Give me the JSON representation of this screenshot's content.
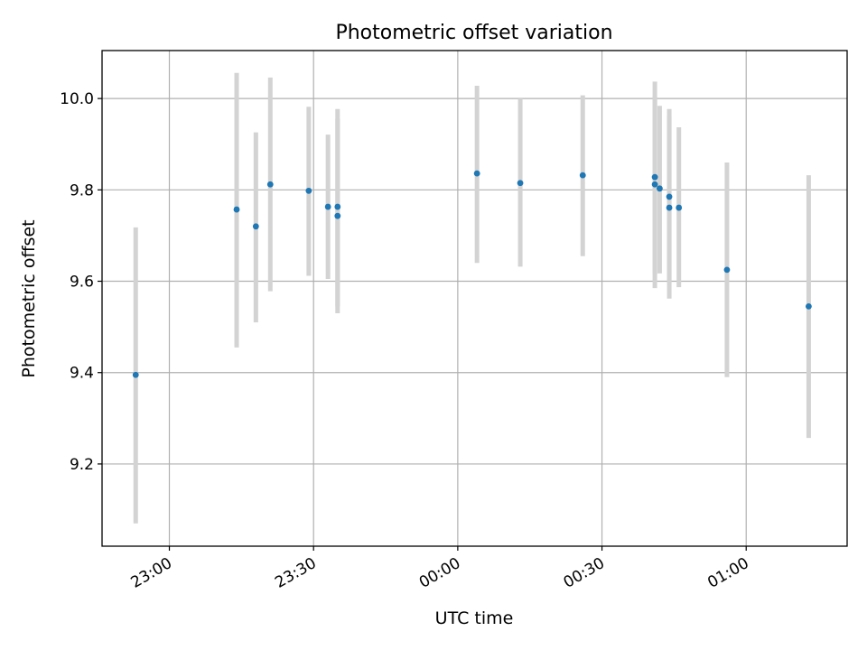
{
  "chart_data": {
    "type": "scatter",
    "title": "Photometric offset variation",
    "xlabel": "UTC time",
    "ylabel": "Photometric offset",
    "grid": true,
    "x_tick_labels": [
      "23:00",
      "23:30",
      "00:00",
      "00:30",
      "01:00"
    ],
    "x_tick_values": [
      "2000-01-01T23:00",
      "2000-01-01T23:30",
      "2000-01-02T00:00",
      "2000-01-02T00:30",
      "2000-01-02T01:00"
    ],
    "y_tick_labels": [
      "9.2",
      "9.4",
      "9.6",
      "9.8",
      "10.0"
    ],
    "y_tick_values": [
      9.2,
      9.4,
      9.6,
      9.8,
      10.0
    ],
    "xlim": [
      "2000-01-01T22:46",
      "2000-01-02T01:21"
    ],
    "ylim": [
      9.02,
      10.105
    ],
    "point_color": "#1f77b4",
    "errorbar_color": "#d3d3d3",
    "series": [
      {
        "x": [
          "2000-01-01T22:53",
          "2000-01-01T23:14",
          "2000-01-01T23:18",
          "2000-01-01T23:21",
          "2000-01-01T23:29",
          "2000-01-01T23:33",
          "2000-01-01T23:35",
          "2000-01-01T23:35",
          "2000-01-02T00:04",
          "2000-01-02T00:13",
          "2000-01-02T00:26",
          "2000-01-02T00:41",
          "2000-01-02T00:41",
          "2000-01-02T00:42",
          "2000-01-02T00:44",
          "2000-01-02T00:44",
          "2000-01-02T00:46",
          "2000-01-02T00:56",
          "2000-01-02T01:13"
        ],
        "y": [
          9.395,
          9.757,
          9.72,
          9.812,
          9.798,
          9.763,
          9.743,
          9.763,
          9.836,
          9.815,
          9.832,
          9.812,
          9.828,
          9.803,
          9.785,
          9.761,
          9.761,
          9.625,
          9.545
        ],
        "yerr_low": [
          9.07,
          9.455,
          9.51,
          9.578,
          9.612,
          9.605,
          9.53,
          9.545,
          9.64,
          9.632,
          9.655,
          9.585,
          9.615,
          9.617,
          9.595,
          9.562,
          9.587,
          9.39,
          9.257
        ],
        "yerr_high": [
          9.718,
          10.056,
          9.926,
          10.046,
          9.982,
          9.921,
          9.955,
          9.977,
          10.028,
          10.0,
          10.007,
          10.037,
          10.005,
          9.984,
          9.977,
          9.962,
          9.937,
          9.86,
          9.832
        ]
      }
    ]
  }
}
